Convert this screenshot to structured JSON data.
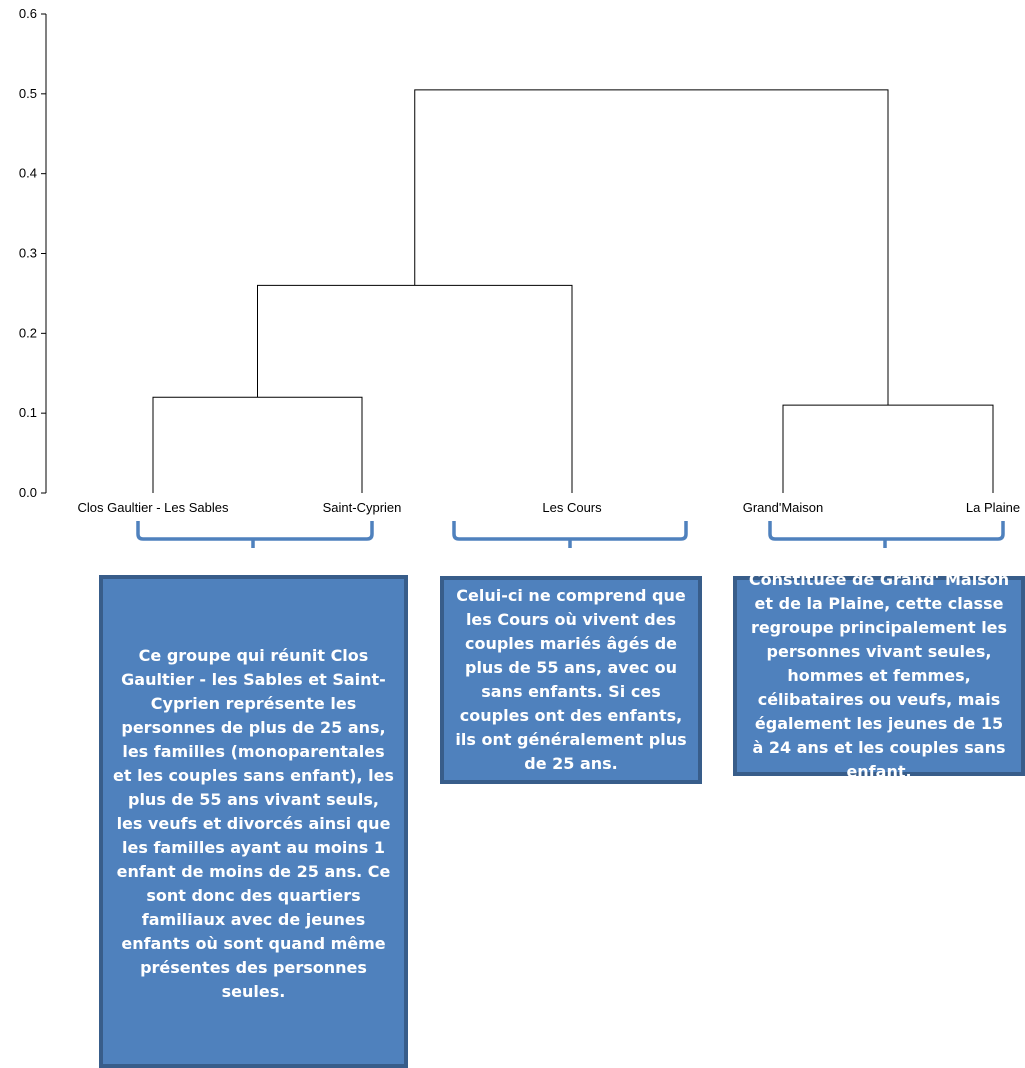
{
  "chart_data": {
    "type": "dendrogram",
    "title": "",
    "xlabel": "",
    "ylabel": "",
    "ylim": [
      0,
      0.6
    ],
    "y_ticks": [
      "0.0",
      "0.1",
      "0.2",
      "0.3",
      "0.4",
      "0.5",
      "0.6"
    ],
    "leaves": [
      "Clos Gaultier - Les Sables",
      "Saint-Cyprien",
      "Les Cours",
      "Grand'Maison",
      "La Plaine"
    ],
    "merges": [
      {
        "left": "Clos Gaultier - Les Sables",
        "right": "Saint-Cyprien",
        "height": 0.12
      },
      {
        "left": "Grand'Maison",
        "right": "La Plaine",
        "height": 0.11
      },
      {
        "left": "Clos Gaultier - Les Sables + Saint-Cyprien",
        "right": "Les Cours",
        "height": 0.26
      },
      {
        "left": "Clos Gaultier - Les Sables + Saint-Cyprien + Les Cours",
        "right": "Grand'Maison + La Plaine",
        "height": 0.505
      }
    ],
    "line_color": "#000000",
    "grid": false
  },
  "annotations": {
    "bracket_color": "#4f81bd",
    "box_color": "#4f81bd",
    "box_border_color": "#385d8a",
    "group1_text": "Ce groupe qui réunit Clos Gaultier - les Sables et Saint-Cyprien représente les personnes de plus de 25 ans, les familles (monoparentales et les couples sans enfant), les plus de 55 ans vivant seuls, les veufs et divorcés ainsi que les familles ayant au moins 1 enfant de moins de 25 ans. Ce sont donc des quartiers familiaux avec de jeunes enfants où sont quand même présentes des personnes seules.",
    "group2_text": "Celui-ci ne comprend que les Cours où vivent des couples mariés âgés de plus de 55 ans, avec ou sans enfants. Si ces couples ont des enfants, ils ont généralement plus de 25 ans.",
    "group3_text": "Constituée de Grand' Maison et de la Plaine, cette classe regroupe principalement les personnes vivant seules, hommes et femmes, célibataires ou veufs, mais également les jeunes de 15 à 24 ans et les couples sans enfant."
  }
}
